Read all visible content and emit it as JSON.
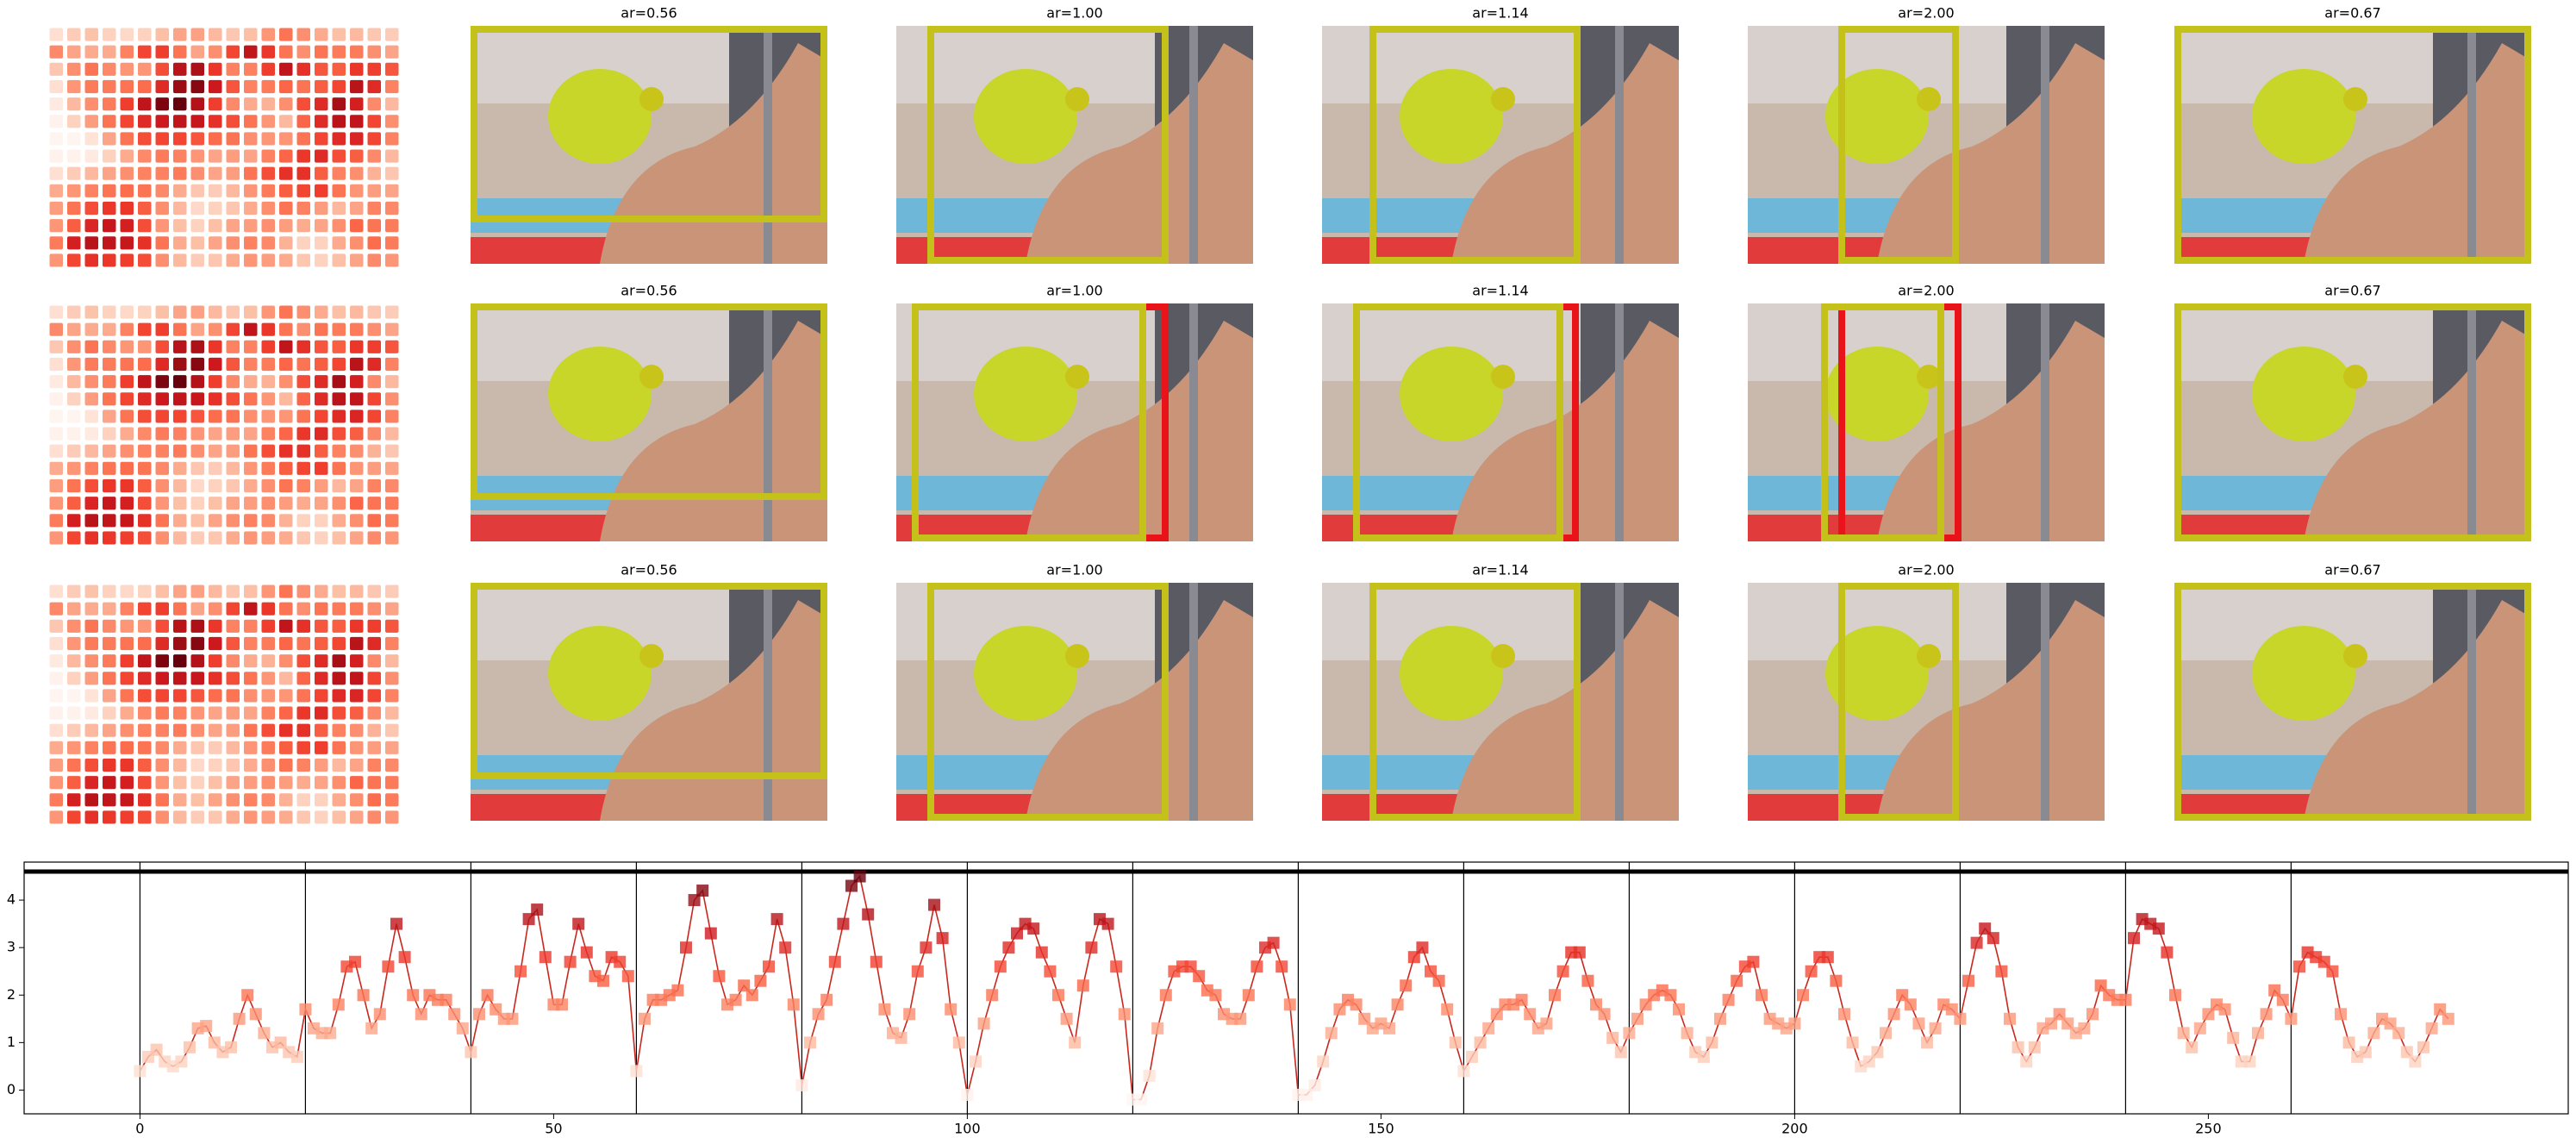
{
  "panels": {
    "rows": [
      [
        "ar=0.56",
        "ar=1.00",
        "ar=1.14",
        "ar=2.00",
        "ar=0.67"
      ],
      [
        "ar=0.56",
        "ar=1.00",
        "ar=1.14",
        "ar=2.00",
        "ar=0.67"
      ],
      [
        "ar=0.56",
        "ar=1.00",
        "ar=1.14",
        "ar=2.00",
        "ar=0.67"
      ]
    ]
  },
  "chart_data": {
    "type": "line",
    "color": "#c8281e",
    "cmap": "Reds",
    "values": [
      0.4,
      0.7,
      0.85,
      0.6,
      0.5,
      0.6,
      0.9,
      1.3,
      1.35,
      1.0,
      0.8,
      0.9,
      1.5,
      2.0,
      1.6,
      1.2,
      0.9,
      1.0,
      0.8,
      0.7,
      1.7,
      1.3,
      1.2,
      1.2,
      1.8,
      2.6,
      2.7,
      2.0,
      1.3,
      1.6,
      2.6,
      3.5,
      2.8,
      2.0,
      1.6,
      2.0,
      1.9,
      1.9,
      1.6,
      1.3,
      0.8,
      1.6,
      2.0,
      1.7,
      1.5,
      1.5,
      2.5,
      3.6,
      3.8,
      2.8,
      1.8,
      1.8,
      2.7,
      3.5,
      2.9,
      2.4,
      2.3,
      2.8,
      2.7,
      2.4,
      0.4,
      1.5,
      1.9,
      1.9,
      2.0,
      2.1,
      3.0,
      4.0,
      4.2,
      3.3,
      2.4,
      1.8,
      1.9,
      2.2,
      2.0,
      2.3,
      2.6,
      3.6,
      3.0,
      1.8,
      0.1,
      1.0,
      1.6,
      1.9,
      2.7,
      3.5,
      4.3,
      4.5,
      3.7,
      2.7,
      1.7,
      1.2,
      1.1,
      1.6,
      2.5,
      3.0,
      3.9,
      3.2,
      1.7,
      1.0,
      -0.1,
      0.6,
      1.4,
      2.0,
      2.6,
      3.0,
      3.3,
      3.5,
      3.4,
      2.9,
      2.5,
      2.0,
      1.5,
      1.0,
      2.2,
      3.0,
      3.6,
      3.5,
      2.6,
      1.6,
      -0.2,
      -0.2,
      0.3,
      1.3,
      2.0,
      2.5,
      2.6,
      2.6,
      2.4,
      2.1,
      2.0,
      1.6,
      1.5,
      1.5,
      2.0,
      2.6,
      3.0,
      3.1,
      2.6,
      1.8,
      -0.1,
      -0.1,
      0.1,
      0.6,
      1.2,
      1.7,
      1.9,
      1.8,
      1.5,
      1.3,
      1.4,
      1.3,
      1.8,
      2.2,
      2.8,
      3.0,
      2.5,
      2.3,
      1.7,
      1.0,
      0.4,
      0.7,
      1.0,
      1.3,
      1.6,
      1.8,
      1.8,
      1.9,
      1.6,
      1.3,
      1.4,
      2.0,
      2.5,
      2.9,
      2.9,
      2.3,
      1.8,
      1.6,
      1.1,
      0.8,
      1.2,
      1.5,
      1.8,
      2.0,
      2.1,
      2.0,
      1.7,
      1.2,
      0.8,
      0.7,
      1.0,
      1.5,
      1.9,
      2.3,
      2.6,
      2.7,
      2.0,
      1.5,
      1.4,
      1.3,
      1.4,
      2.0,
      2.5,
      2.8,
      2.8,
      2.3,
      1.6,
      1.0,
      0.5,
      0.6,
      0.8,
      1.2,
      1.6,
      2.0,
      1.8,
      1.4,
      1.0,
      1.3,
      1.8,
      1.7,
      1.5,
      2.3,
      3.1,
      3.4,
      3.2,
      2.5,
      1.5,
      0.9,
      0.6,
      0.9,
      1.3,
      1.4,
      1.6,
      1.4,
      1.2,
      1.3,
      1.6,
      2.2,
      2.0,
      1.9,
      1.9,
      3.2,
      3.6,
      3.5,
      3.4,
      2.9,
      2.0,
      1.2,
      0.9,
      1.3,
      1.6,
      1.8,
      1.7,
      1.1,
      0.6,
      0.6,
      1.2,
      1.6,
      2.1,
      1.9,
      1.5,
      2.6,
      2.9,
      2.8,
      2.7,
      2.5,
      1.6,
      1.0,
      0.7,
      0.8,
      1.2,
      1.5,
      1.4,
      1.2,
      0.8,
      0.6,
      0.9,
      1.3,
      1.7,
      1.5
    ],
    "vlines": [
      0,
      20,
      40,
      60,
      80,
      100,
      120,
      140,
      160,
      180,
      200,
      220,
      240,
      260
    ],
    "hline": 4.6,
    "xlim": [
      -14,
      293.5
    ],
    "xticks": [
      0,
      50,
      100,
      150,
      200,
      250
    ],
    "ylim": [
      -0.5,
      4.8
    ],
    "yticks": [
      0,
      1,
      2,
      3,
      4
    ]
  }
}
